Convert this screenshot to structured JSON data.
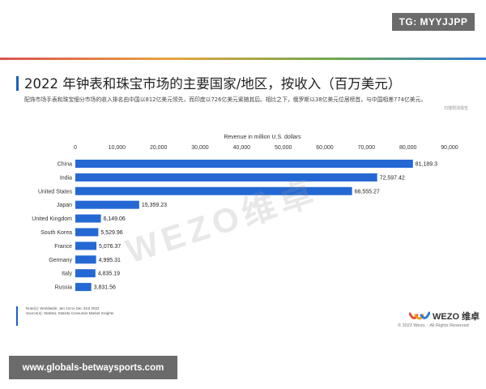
{
  "badge": {
    "text": "TG: MYYJJPP"
  },
  "header": {
    "title": "2022 年钟表和珠宝市场的主要国家/地区，按收入（百万美元）",
    "subtitle": "配饰市场手表和珠宝细分市场的收入排名由中国以812亿美元领先，而印度以726亿美元紧随其后。相比之下，俄罗斯以38亿美元位居榜首，与中国相差774亿美元。",
    "source_tag": "扫描预测报告"
  },
  "watermark": {
    "text": "WEZO维卓"
  },
  "footer": {
    "notes_line1": "Note(s): Worldwide; Jan 1st to Dec 31st 2022",
    "notes_line2": "Source(s): Statista; Statista Consumer Market Insights",
    "brand": "WEZO 维卓",
    "copyright": "© 2023 Wezo. - All Rights Reserved"
  },
  "url_banner": {
    "text": "www.globals-betwaysports.com"
  },
  "colors": {
    "bar": "#2468d4",
    "accent": "#1f5fc1"
  },
  "chart_data": {
    "type": "bar",
    "orientation": "horizontal",
    "xlabel": "Revenue in million U.S. dollars",
    "xlim": [
      0,
      90000
    ],
    "ticks": [
      0,
      10000,
      20000,
      30000,
      40000,
      50000,
      60000,
      70000,
      80000,
      90000
    ],
    "tick_labels": [
      "0",
      "10,000",
      "20,000",
      "30,000",
      "40,000",
      "50,000",
      "60,000",
      "70,000",
      "80,000",
      "90,000"
    ],
    "categories": [
      "China",
      "India",
      "United States",
      "Japan",
      "United Kingdom",
      "South Korea",
      "France",
      "Germany",
      "Italy",
      "Russia"
    ],
    "values": [
      81189.3,
      72597.42,
      66555.27,
      15359.23,
      6149.06,
      5529.96,
      5076.37,
      4995.31,
      4835.19,
      3831.56
    ],
    "value_labels": [
      "81,189.3",
      "72,597.42",
      "66,555.27",
      "15,359.23",
      "6,149.06",
      "5,529.96",
      "5,076.37",
      "4,995.31",
      "4,835.19",
      "3,831.56"
    ],
    "axis_position": "top",
    "grid": false,
    "legend": "none"
  }
}
